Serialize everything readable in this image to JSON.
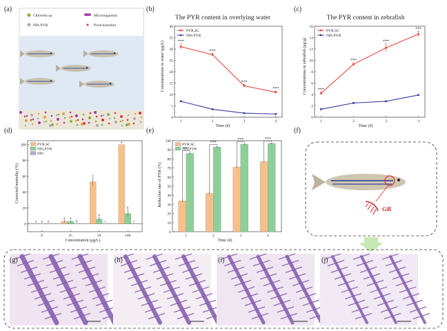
{
  "panels": {
    "a": "(a)",
    "b": "(b)",
    "c": "(c)",
    "d": "(d)",
    "e": "(e)",
    "f": "(f)",
    "g": "(g)",
    "h": "(h)",
    "i": "(i)",
    "j": "(j)"
  },
  "schematic": {
    "legend": [
      "Chlorella sp.",
      "Microorganism",
      "NPs.PYR",
      "Pyraclostrobin"
    ],
    "gill_label": "Gill"
  },
  "colors": {
    "red": "#e8463c",
    "blue": "#3a3aa0",
    "orange": "#f7c08a",
    "green": "#8ccf9a",
    "purple": "#b6a6d6",
    "water": "#dfe9f4",
    "tissue": "#8a5bb3"
  },
  "chart_data": [
    {
      "id": "b",
      "type": "line",
      "title": "The PYR content in overlying water",
      "xlabel": "Time (d)",
      "ylabel": "Concentrations in water (μg/L)",
      "x": [
        1,
        2,
        3,
        4
      ],
      "xlim": [
        0.8,
        4.2
      ],
      "ylim": [
        0,
        40
      ],
      "yticks": [
        0,
        5,
        10,
        15,
        20,
        25,
        30,
        35,
        40
      ],
      "legend_position": "top-left",
      "series": [
        {
          "name": "PYR.SC",
          "color": "#e8463c",
          "values": [
            31,
            27.5,
            13.8,
            11
          ],
          "errors": [
            1.2,
            0.6,
            0.6,
            0.5
          ]
        },
        {
          "name": "NPs.PYR",
          "color": "#3a3aa0",
          "values": [
            7,
            3.5,
            1.8,
            1.4
          ],
          "errors": [
            0.2,
            0.2,
            0.1,
            0.1
          ]
        }
      ],
      "annotations": [
        "***",
        "***",
        "***",
        "***"
      ]
    },
    {
      "id": "c",
      "type": "line",
      "title": "The PYR content in zebrafish",
      "xlabel": "Time (d)",
      "ylabel": "Concentrations in zebrafish (μg/g)",
      "x": [
        1,
        2,
        3,
        4
      ],
      "xlim": [
        0.8,
        4.2
      ],
      "ylim": [
        0,
        16
      ],
      "yticks": [
        0,
        2,
        4,
        6,
        8,
        10,
        12,
        14,
        16
      ],
      "legend_position": "top-left",
      "series": [
        {
          "name": "PYR.SC",
          "color": "#e8463c",
          "values": [
            4.2,
            9.3,
            12.2,
            14.6
          ],
          "errors": [
            0.2,
            0.3,
            0.7,
            0.5
          ]
        },
        {
          "name": "NPs.PYR",
          "color": "#3a3aa0",
          "values": [
            1.4,
            2.5,
            2.8,
            3.9
          ],
          "errors": [
            0.1,
            0.1,
            0.1,
            0.1
          ]
        }
      ],
      "annotations": [
        "***",
        "***",
        "***",
        "***"
      ]
    },
    {
      "id": "d",
      "type": "bar",
      "xlabel": "Concentration (μg/L)",
      "ylabel": "Corrected mortality (%)",
      "categories": [
        "0",
        "25",
        "50",
        "100"
      ],
      "ylim": [
        -10,
        105
      ],
      "yticks": [
        0,
        20,
        40,
        60,
        80,
        100
      ],
      "legend_position": "top-left",
      "series": [
        {
          "name": "PYR.SC",
          "color": "#f7c08a",
          "values": [
            0,
            3,
            53,
            100
          ],
          "errors": [
            0,
            1.5,
            5,
            0
          ],
          "letters": [
            "a",
            "a",
            "c",
            "a"
          ]
        },
        {
          "name": "NPs.PYR",
          "color": "#8ccf9a",
          "values": [
            0,
            3,
            6,
            13
          ],
          "errors": [
            0,
            1,
            2,
            4
          ],
          "letters": [
            "a",
            "a",
            "b",
            "b"
          ]
        },
        {
          "name": "NPs",
          "color": "#b6a6d6",
          "values": [
            0,
            0,
            0,
            0
          ],
          "errors": [
            0,
            0,
            0,
            0
          ],
          "letters": [
            "a",
            "b",
            "c",
            "c"
          ]
        }
      ]
    },
    {
      "id": "e",
      "type": "bar",
      "xlabel": "Time (d)",
      "ylabel": "Reduction rate of PYR (%)",
      "categories": [
        "1",
        "2",
        "3",
        "4"
      ],
      "ylim": [
        0,
        100
      ],
      "yticks": [
        0,
        10,
        20,
        30,
        40,
        50,
        60,
        70,
        80,
        90,
        100
      ],
      "legend_position": "top-left",
      "series": [
        {
          "name": "PYR.SC",
          "color": "#f7c08a",
          "values": [
            34,
            42,
            71,
            77
          ],
          "errors": [
            1.5,
            0.8,
            1,
            1
          ]
        },
        {
          "name": "NPs.PYR",
          "color": "#8ccf9a",
          "values": [
            86,
            93,
            96,
            97
          ],
          "errors": [
            0.8,
            0.6,
            0.5,
            0.5
          ]
        }
      ],
      "annotations": [
        "***",
        "***",
        "***",
        "***"
      ]
    }
  ]
}
